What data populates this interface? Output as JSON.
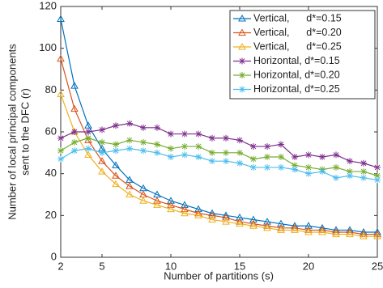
{
  "chart_data": {
    "type": "line",
    "xlabel": "Number of partitions (s)",
    "ylabel": [
      "Number of local principal components",
      "sent to the DFC (r)"
    ],
    "x": [
      2,
      3,
      4,
      5,
      6,
      7,
      8,
      9,
      10,
      11,
      12,
      13,
      14,
      15,
      16,
      17,
      18,
      19,
      20,
      21,
      22,
      23,
      24,
      25
    ],
    "xlim": [
      2,
      25
    ],
    "xticks": [
      2,
      5,
      10,
      15,
      20,
      25
    ],
    "ylim": [
      0,
      120
    ],
    "yticks": [
      0,
      20,
      40,
      60,
      80,
      100,
      120
    ],
    "legend": "upper right",
    "series": [
      {
        "name": "Vertical,      d*=0.15",
        "color": "#0072bd",
        "marker": "triangle",
        "values": [
          114,
          82,
          63,
          52,
          44,
          37,
          33,
          30,
          27,
          25,
          23,
          21,
          20,
          19,
          18,
          17,
          16,
          15,
          15,
          14,
          13,
          13,
          12,
          12
        ]
      },
      {
        "name": "Vertical,      d*=0.20",
        "color": "#d95319",
        "marker": "triangle",
        "values": [
          95,
          71,
          56,
          46,
          39,
          34,
          30,
          27,
          25,
          23,
          21,
          20,
          19,
          17,
          16,
          15,
          14,
          14,
          13,
          13,
          12,
          12,
          11,
          11
        ]
      },
      {
        "name": "Vertical,      d*=0.25",
        "color": "#edb120",
        "marker": "triangle",
        "values": [
          78,
          60,
          49,
          41,
          35,
          30,
          27,
          25,
          23,
          21,
          20,
          18,
          17,
          16,
          15,
          14,
          13,
          13,
          12,
          12,
          11,
          11,
          10,
          10
        ]
      },
      {
        "name": "Horizontal, d*=0.15",
        "color": "#7e2f8e",
        "marker": "asterisk",
        "values": [
          57,
          60,
          60,
          61,
          63,
          64,
          62,
          62,
          59,
          59,
          59,
          57,
          57,
          56,
          53,
          53,
          54,
          48,
          49,
          48,
          49,
          46,
          45,
          43
        ]
      },
      {
        "name": "Horizontal, d*=0.20",
        "color": "#77ac30",
        "marker": "asterisk",
        "values": [
          51,
          55,
          57,
          55,
          54,
          56,
          55,
          54,
          52,
          53,
          53,
          50,
          50,
          50,
          47,
          48,
          48,
          44,
          43,
          42,
          43,
          41,
          41,
          39
        ]
      },
      {
        "name": "Horizontal, d*=0.25",
        "color": "#4dbeee",
        "marker": "asterisk",
        "values": [
          47,
          51,
          52,
          50,
          51,
          52,
          51,
          50,
          48,
          49,
          48,
          46,
          46,
          45,
          43,
          43,
          43,
          42,
          40,
          41,
          38,
          39,
          38,
          37
        ]
      }
    ]
  }
}
